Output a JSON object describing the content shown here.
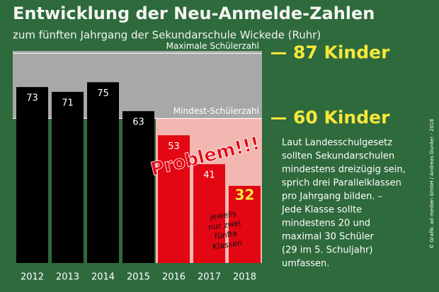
{
  "chart_data": {
    "type": "bar",
    "title": "Entwicklung der Neu-Anmelde-Zahlen",
    "subtitle": "zum fünften Jahrgang der Sekundarschule Wickede (Ruhr)",
    "categories": [
      "2012",
      "2013",
      "2014",
      "2015",
      "2016",
      "2017",
      "2018"
    ],
    "values": [
      73,
      71,
      75,
      63,
      53,
      41,
      32
    ],
    "colors": [
      "#000000",
      "#000000",
      "#000000",
      "#000000",
      "#e30613",
      "#e30613",
      "#e30613"
    ],
    "ylim": [
      0,
      88
    ],
    "thresholds": [
      {
        "value": 87,
        "label": "Maximale Schülerzahl",
        "annotation": "87 Kinder"
      },
      {
        "value": 60,
        "label": "Mindest-Schülerzahl",
        "annotation": "60 Kinder"
      }
    ],
    "problem": "Problem!!!",
    "note": [
      "jeweils",
      "nur zwei",
      "fünfte",
      "Klassen"
    ],
    "text": [
      "Laut Landesschulgesetz",
      "sollten Sekundarschulen",
      "mindestens dreizügig sein,",
      "sprich drei Parallelklassen",
      "pro Jahrgang bilden. –",
      "Jede Klasse sollte",
      "mindestens 20 und",
      "maximal 30 Schüler",
      "(29 im 5. Schuljahr)",
      "umfassen."
    ],
    "credit": "© Grafik: ad medien GmbH / Andreas Dunker · 2018"
  }
}
